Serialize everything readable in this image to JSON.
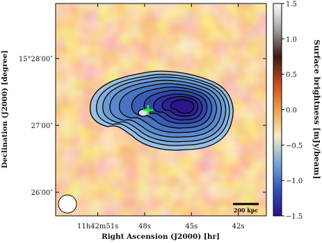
{
  "chart_data": {
    "type": "image",
    "xlabel": "Right Ascension (J2000) [hr]",
    "ylabel": "Declination (J2000) [degree]",
    "xlim": [
      53.7,
      40.2
    ],
    "xticks": [
      {
        "value": 51,
        "label": "11h42m51s"
      },
      {
        "value": 48,
        "label": "48s"
      },
      {
        "value": 45,
        "label": "45s"
      },
      {
        "value": 42,
        "label": "42s"
      }
    ],
    "ylim": [
      1538.8,
      1729.4
    ],
    "yticks": [
      {
        "value": 1560,
        "label": "26′00″"
      },
      {
        "value": 1620,
        "label": "27′00″"
      },
      {
        "value": 1680,
        "label": "15°28′00″"
      }
    ],
    "colorbar": {
      "label": "Surface brightness [mJy/beam]",
      "lim": [
        -1.5,
        1.5
      ],
      "ticks": [
        {
          "value": -1.5,
          "label": "−1.5"
        },
        {
          "value": -1,
          "label": "−1.0"
        },
        {
          "value": -0.5,
          "label": "−0.5"
        },
        {
          "value": 0,
          "label": "0.0"
        },
        0.5,
        {
          "value": 1,
          "label": "1.0"
        },
        1.5
      ],
      "colors": [
        "#2b0f8a",
        "#2e56b8",
        "#7aa6d6",
        "#f3ebc8",
        "#eca24a",
        "#c84a1e",
        "#3a1a14",
        "#a0a0a0",
        "#ffffff"
      ]
    },
    "scalebar_label": "200 kpc"
  }
}
